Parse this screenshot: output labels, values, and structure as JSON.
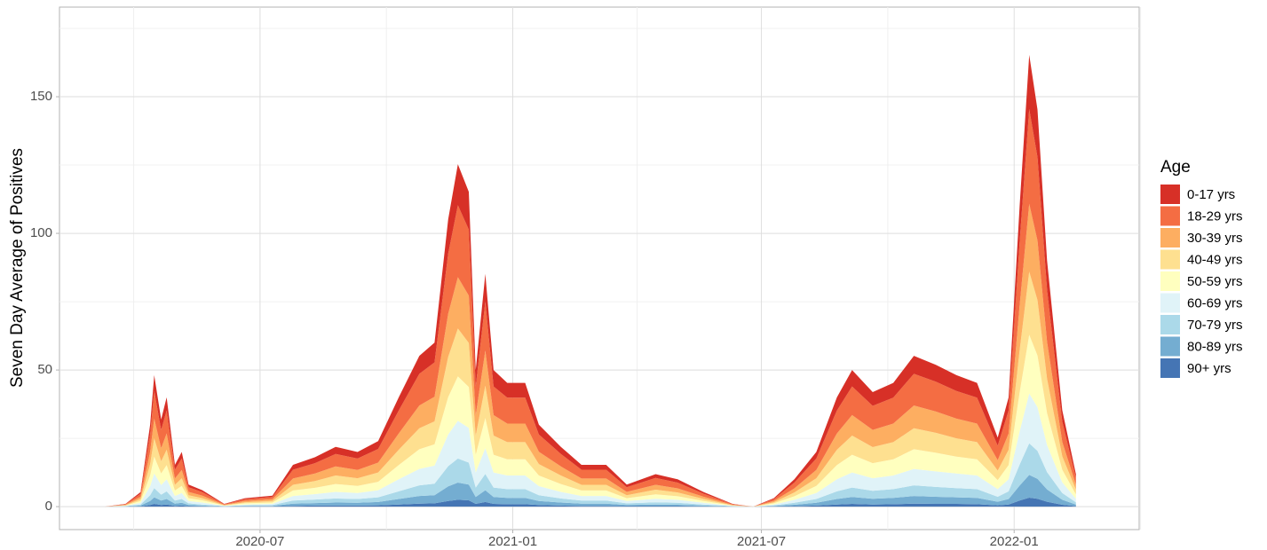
{
  "chart_data": {
    "type": "stacked_area",
    "y_label": "Seven Day Average of Positives",
    "legend_title": "Age",
    "legend_position": "right",
    "grid": true,
    "xlim": [
      "2020-02-06",
      "2022-04-02"
    ],
    "xticks": [
      {
        "value": "2020-07-01",
        "label": "2020-07"
      },
      {
        "value": "2021-01-01",
        "label": "2021-01"
      },
      {
        "value": "2021-07-01",
        "label": "2021-07"
      },
      {
        "value": "2022-01-01",
        "label": "2022-01"
      }
    ],
    "ylim": [
      -8.4,
      182.8
    ],
    "yticks": [
      0,
      50,
      100,
      150
    ],
    "x": [
      "2020-03-10",
      "2020-03-25",
      "2020-04-05",
      "2020-04-12",
      "2020-04-15",
      "2020-04-20",
      "2020-04-24",
      "2020-04-30",
      "2020-05-05",
      "2020-05-10",
      "2020-05-20",
      "2020-06-05",
      "2020-06-20",
      "2020-07-10",
      "2020-07-25",
      "2020-08-10",
      "2020-08-25",
      "2020-09-10",
      "2020-09-25",
      "2020-10-10",
      "2020-10-25",
      "2020-11-05",
      "2020-11-15",
      "2020-11-22",
      "2020-11-30",
      "2020-12-05",
      "2020-12-12",
      "2020-12-18",
      "2020-12-28",
      "2021-01-10",
      "2021-01-20",
      "2021-02-05",
      "2021-02-20",
      "2021-03-10",
      "2021-03-25",
      "2021-04-15",
      "2021-05-01",
      "2021-05-20",
      "2021-06-10",
      "2021-06-25",
      "2021-07-10",
      "2021-07-25",
      "2021-08-10",
      "2021-08-25",
      "2021-09-05",
      "2021-09-20",
      "2021-10-05",
      "2021-10-20",
      "2021-11-05",
      "2021-11-20",
      "2021-12-05",
      "2021-12-20",
      "2021-12-28",
      "2022-01-05",
      "2022-01-12",
      "2022-01-18",
      "2022-01-25",
      "2022-02-05",
      "2022-02-15"
    ],
    "series": [
      {
        "name": "0-17 yrs",
        "color": "#d73027",
        "values": [
          0,
          0.1,
          0.6,
          3.6,
          5.8,
          3.8,
          4.8,
          1.8,
          2.4,
          1,
          0.7,
          0.1,
          0.4,
          0.5,
          1.8,
          2.2,
          2.6,
          2.4,
          2.9,
          4.8,
          6.6,
          7.2,
          12.6,
          15,
          13.8,
          6,
          10.2,
          6,
          5.4,
          5.4,
          3.6,
          2.6,
          1.8,
          1.8,
          1,
          1.4,
          1.2,
          0.6,
          0.1,
          0,
          0.4,
          1.2,
          2.4,
          4.8,
          6,
          5,
          5.4,
          6.6,
          6.2,
          5.8,
          5.4,
          3,
          4.8,
          13.2,
          19.8,
          17.4,
          10.8,
          4.2,
          1.4
        ]
      },
      {
        "name": "18-29 yrs",
        "color": "#f46d43",
        "values": [
          0,
          0.2,
          1.1,
          6.3,
          10.1,
          6.7,
          8.4,
          3.2,
          4.2,
          1.7,
          1.3,
          0.2,
          0.6,
          0.8,
          3.2,
          3.8,
          4.6,
          4.2,
          5,
          8.4,
          11.6,
          12.6,
          22,
          26.3,
          24.2,
          10.5,
          17.9,
          10.5,
          9.5,
          9.5,
          6.3,
          4.6,
          3.2,
          3.2,
          1.7,
          2.5,
          2.1,
          1.1,
          0.2,
          0,
          0.6,
          2.1,
          4.2,
          8.4,
          10.5,
          8.8,
          9.5,
          11.6,
          10.9,
          10.1,
          9.5,
          5.3,
          8.4,
          23.1,
          34.7,
          30.5,
          18.9,
          7.4,
          2.5
        ]
      },
      {
        "name": "30-39 yrs",
        "color": "#fdae61",
        "values": [
          0,
          0.2,
          0.8,
          4.5,
          7.2,
          4.8,
          6,
          2.3,
          3,
          1.2,
          0.9,
          0.2,
          0.5,
          0.6,
          2.3,
          2.7,
          3.3,
          3,
          3.6,
          6,
          8.3,
          9,
          15.8,
          18.8,
          17.3,
          7.5,
          12.8,
          7.5,
          6.8,
          6.8,
          4.5,
          3.3,
          2.3,
          2.3,
          1.2,
          1.8,
          1.5,
          0.8,
          0.2,
          0,
          0.5,
          1.5,
          3,
          6,
          7.5,
          6.3,
          6.8,
          8.3,
          7.8,
          7.2,
          6.8,
          3.8,
          6,
          16.5,
          24.8,
          21.8,
          13.5,
          5.3,
          1.8
        ]
      },
      {
        "name": "40-49 yrs",
        "color": "#fee090",
        "values": [
          0,
          0.1,
          0.7,
          4.2,
          6.7,
          4.5,
          5.6,
          2.1,
          2.8,
          1.1,
          0.8,
          0.1,
          0.4,
          0.6,
          2.1,
          2.5,
          3.1,
          2.8,
          3.4,
          5.6,
          7.7,
          8.4,
          14.7,
          17.5,
          16.1,
          7,
          11.9,
          7,
          6.3,
          6.3,
          4.2,
          3.1,
          2.1,
          2.1,
          1.1,
          1.7,
          1.4,
          0.7,
          0.1,
          0,
          0.4,
          1.4,
          2.8,
          5.6,
          7,
          5.9,
          6.3,
          7.7,
          7.3,
          6.7,
          6.3,
          3.5,
          5.6,
          15.4,
          23.1,
          20.3,
          12.6,
          4.9,
          1.7
        ]
      },
      {
        "name": "50-59 yrs",
        "color": "#ffffbf",
        "values": [
          0,
          0.1,
          0.7,
          3.9,
          6.2,
          4.2,
          5.2,
          2,
          2.6,
          1,
          0.8,
          0.1,
          0.4,
          0.5,
          2,
          2.3,
          2.9,
          2.6,
          3.1,
          5.2,
          7.2,
          7.8,
          13.7,
          16.3,
          15,
          6.5,
          11,
          6.5,
          5.9,
          5.9,
          3.9,
          2.9,
          2,
          2,
          1,
          1.6,
          1.3,
          0.7,
          0.1,
          0,
          0.4,
          1.3,
          2.6,
          5.2,
          6.5,
          5.5,
          5.9,
          7.2,
          6.8,
          6.2,
          5.9,
          3.3,
          5.2,
          14.3,
          21.5,
          18.9,
          11.7,
          4.6,
          1.6
        ]
      },
      {
        "name": "60-69 yrs",
        "color": "#e0f3f8",
        "values": [
          0,
          0.1,
          0.6,
          3.3,
          5.3,
          3.5,
          4.4,
          1.7,
          2.2,
          0.9,
          0.7,
          0.1,
          0.3,
          0.4,
          1.7,
          2,
          2.4,
          2.2,
          2.6,
          4.4,
          6,
          6.6,
          11.6,
          13.8,
          12.7,
          5.5,
          9.4,
          5.5,
          5,
          5,
          3.3,
          2.4,
          1.7,
          1.7,
          0.9,
          1.3,
          1.1,
          0.6,
          0.1,
          0,
          0.3,
          1.1,
          2.2,
          4.4,
          5.5,
          4.6,
          5,
          6,
          5.7,
          5.3,
          5,
          2.8,
          4.4,
          12.1,
          18.2,
          16,
          9.9,
          3.9,
          1.3
        ]
      },
      {
        "name": "70-79 yrs",
        "color": "#abd9e9",
        "values": [
          0,
          0.1,
          0.4,
          2.1,
          3.4,
          2.2,
          2.8,
          1.1,
          1.4,
          0.6,
          0.4,
          0.1,
          0.2,
          0.3,
          1.1,
          1.3,
          1.5,
          1.4,
          1.7,
          2.8,
          3.9,
          4.2,
          7.4,
          8.8,
          8,
          3.5,
          6,
          3.5,
          3.2,
          3.2,
          2.1,
          1.5,
          1.1,
          1.1,
          0.6,
          0.8,
          0.7,
          0.4,
          0.1,
          0,
          0.2,
          0.7,
          1.4,
          2.8,
          3.5,
          2.9,
          3.2,
          3.9,
          3.6,
          3.4,
          3.2,
          1.8,
          2.8,
          7.7,
          11.6,
          10.2,
          6.3,
          2.5,
          0.8
        ]
      },
      {
        "name": "80-89 yrs",
        "color": "#74add1",
        "values": [
          0,
          0.1,
          0.3,
          1.5,
          2.4,
          1.6,
          2,
          0.8,
          1,
          0.4,
          0.3,
          0.1,
          0.2,
          0.2,
          0.8,
          0.9,
          1.1,
          1,
          1.2,
          2,
          2.8,
          3,
          5.3,
          6.3,
          5.8,
          2.5,
          4.3,
          2.5,
          2.3,
          2.3,
          1.5,
          1.1,
          0.8,
          0.8,
          0.4,
          0.6,
          0.5,
          0.3,
          0.1,
          0,
          0.2,
          0.5,
          1,
          2,
          2.5,
          2.1,
          2.3,
          2.8,
          2.6,
          2.4,
          2.3,
          1.3,
          2,
          5.5,
          8.3,
          7.3,
          4.5,
          1.8,
          0.6
        ]
      },
      {
        "name": "90+ yrs",
        "color": "#4575b4",
        "values": [
          0,
          0,
          0.1,
          0.6,
          1,
          0.6,
          0.8,
          0.3,
          0.4,
          0.2,
          0.1,
          0,
          0.1,
          0.1,
          0.3,
          0.4,
          0.4,
          0.4,
          0.5,
          0.8,
          1.1,
          1.2,
          2.1,
          2.5,
          2.3,
          1,
          1.7,
          1,
          0.9,
          0.9,
          0.6,
          0.4,
          0.3,
          0.3,
          0.2,
          0.2,
          0.2,
          0.1,
          0,
          0,
          0.1,
          0.2,
          0.4,
          0.8,
          1,
          0.8,
          0.9,
          1.1,
          1,
          1,
          0.9,
          0.5,
          0.8,
          2.2,
          3.3,
          2.9,
          1.8,
          0.7,
          0.2
        ]
      }
    ]
  }
}
